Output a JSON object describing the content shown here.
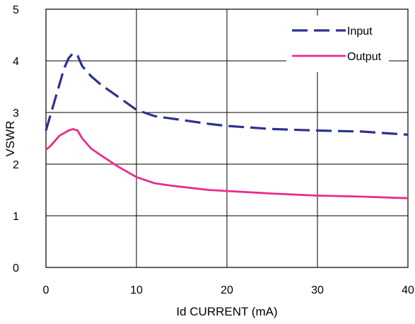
{
  "chart_data": {
    "type": "line",
    "title": "",
    "xlabel": "Id CURRENT (mA)",
    "ylabel": "VSWR",
    "xlim": [
      0,
      40
    ],
    "ylim": [
      0,
      5
    ],
    "xticks": [
      "0",
      "10",
      "20",
      "30",
      "40"
    ],
    "yticks": [
      "0",
      "1",
      "2",
      "3",
      "4",
      "5"
    ],
    "grid": true,
    "legend_position": "top-right",
    "series": [
      {
        "name": "Input",
        "style": "dashed",
        "color": "#2e3192",
        "x": [
          0,
          0.5,
          1,
          1.5,
          2,
          2.5,
          3,
          3.5,
          4,
          5,
          6,
          8,
          10,
          12,
          14,
          16,
          18,
          20,
          25,
          30,
          35,
          40
        ],
        "y": [
          2.65,
          2.95,
          3.25,
          3.55,
          3.85,
          4.05,
          4.15,
          4.1,
          3.9,
          3.7,
          3.55,
          3.3,
          3.05,
          2.93,
          2.88,
          2.83,
          2.78,
          2.74,
          2.68,
          2.65,
          2.63,
          2.57
        ]
      },
      {
        "name": "Output",
        "style": "solid",
        "color": "#ec2a8e",
        "x": [
          0,
          0.5,
          1,
          1.5,
          2,
          2.5,
          3,
          3.5,
          4,
          5,
          6,
          8,
          10,
          12,
          14,
          16,
          18,
          20,
          25,
          30,
          35,
          40
        ],
        "y": [
          2.28,
          2.35,
          2.45,
          2.55,
          2.6,
          2.65,
          2.68,
          2.65,
          2.5,
          2.3,
          2.18,
          1.95,
          1.75,
          1.63,
          1.58,
          1.54,
          1.5,
          1.48,
          1.43,
          1.39,
          1.37,
          1.34
        ]
      }
    ]
  }
}
